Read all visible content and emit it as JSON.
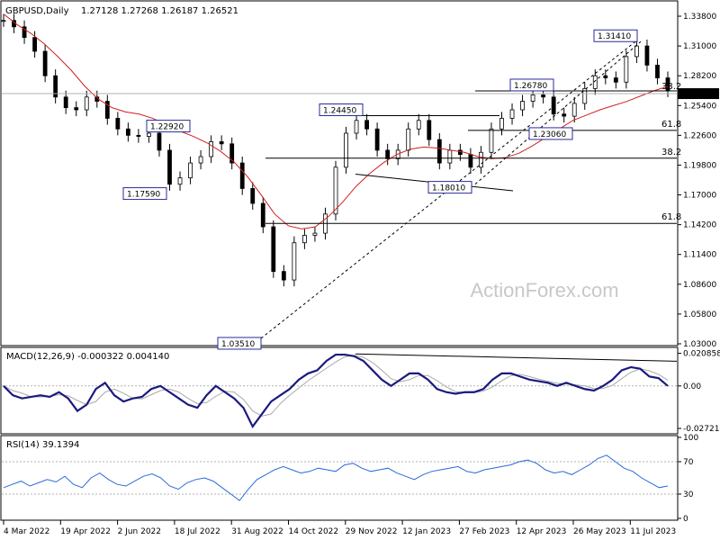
{
  "header": {
    "symbol": "GBPUSD,Daily",
    "ohlc": "1.27128 1.27268 1.26187 1.26521"
  },
  "watermark": "ActionForex.com",
  "colors": {
    "candle": "#000000",
    "ma": "#d02020",
    "macd_main": "#1a1a80",
    "macd_signal": "#aaaaaa",
    "rsi": "#2a6ad8",
    "grid": "#b0b0b0",
    "price_tag_bg": "#000000"
  },
  "chart_data": [
    {
      "type": "candlestick",
      "title": "GBPUSD,Daily",
      "x_tick_labels": [
        "4 Mar 2022",
        "19 Apr 2022",
        "2 Jun 2022",
        "18 Jul 2022",
        "31 Aug 2022",
        "14 Oct 2022",
        "29 Nov 2022",
        "12 Jan 2023",
        "27 Feb 2023",
        "12 Apr 2023",
        "26 May 2023",
        "11 Jul 2023"
      ],
      "y_tick_labels": [
        "1.33800",
        "1.31000",
        "1.28200",
        "1.25400",
        "1.22600",
        "1.19800",
        "1.17000",
        "1.14200",
        "1.11400",
        "1.08600",
        "1.05800",
        "1.03000"
      ],
      "ylim": [
        1.03,
        1.338
      ],
      "last_price": "1.26521",
      "ma_values": [
        1.34,
        1.33,
        1.322,
        1.312,
        1.3,
        1.287,
        1.272,
        1.26,
        1.252,
        1.248,
        1.246,
        1.242,
        1.236,
        1.23,
        1.225,
        1.219,
        1.211,
        1.201,
        1.187,
        1.17,
        1.152,
        1.141,
        1.138,
        1.14,
        1.15,
        1.163,
        1.178,
        1.19,
        1.2,
        1.208,
        1.213,
        1.215,
        1.214,
        1.212,
        1.21,
        1.206,
        1.204,
        1.205,
        1.209,
        1.216,
        1.224,
        1.232,
        1.24,
        1.245,
        1.25,
        1.254,
        1.258,
        1.263,
        1.268,
        1.272
      ],
      "close_values": [
        1.334,
        1.328,
        1.318,
        1.305,
        1.282,
        1.262,
        1.252,
        1.25,
        1.262,
        1.258,
        1.242,
        1.232,
        1.226,
        1.225,
        1.228,
        1.212,
        1.18,
        1.186,
        1.2,
        1.206,
        1.22,
        1.218,
        1.2,
        1.176,
        1.162,
        1.14,
        1.098,
        1.09,
        1.125,
        1.132,
        1.134,
        1.152,
        1.196,
        1.228,
        1.24,
        1.232,
        1.212,
        1.204,
        1.212,
        1.232,
        1.24,
        1.222,
        1.2,
        1.212,
        1.208,
        1.196,
        1.21,
        1.232,
        1.242,
        1.25,
        1.258,
        1.264,
        1.262,
        1.246,
        1.244,
        1.256,
        1.27,
        1.282,
        1.28,
        1.276,
        1.3,
        1.31,
        1.292,
        1.28,
        1.268
      ],
      "levels": [
        {
          "label": "1.31410",
          "value": 1.3141
        },
        {
          "label": "1.26780",
          "value": 1.2678
        },
        {
          "label": "1.24450",
          "value": 1.2445
        },
        {
          "label": "1.22920",
          "value": 1.2292
        },
        {
          "label": "1.23060",
          "value": 1.2306
        },
        {
          "label": "1.17590",
          "value": 1.1759
        },
        {
          "label": "1.18010",
          "value": 1.1801
        },
        {
          "label": "1.03510",
          "value": 1.0351
        }
      ],
      "fib_labels": [
        {
          "label": "38.2",
          "value": 1.2678
        },
        {
          "label": "61.8",
          "value": 1.2306
        },
        {
          "label": "38.2",
          "value": 1.2045
        },
        {
          "label": "61.8",
          "value": 1.1432
        }
      ]
    },
    {
      "type": "line",
      "title": "MACD(12,26,9) -0.000322 0.004140",
      "y_tick_labels": [
        "0.020858",
        "0.00",
        "-0.027213"
      ],
      "ylim": [
        -0.0295,
        0.0235
      ],
      "series": [
        {
          "values": [
            0.0,
            -0.006,
            -0.008,
            -0.007,
            -0.006,
            -0.007,
            -0.004,
            -0.008,
            -0.016,
            -0.012,
            -0.002,
            0.002,
            -0.006,
            -0.01,
            -0.008,
            -0.007,
            -0.002,
            0.0,
            -0.004,
            -0.008,
            -0.012,
            -0.014,
            -0.006,
            0.0,
            -0.004,
            -0.008,
            -0.014,
            -0.026,
            -0.018,
            -0.01,
            -0.006,
            -0.002,
            0.004,
            0.008,
            0.01,
            0.016,
            0.02,
            0.02,
            0.019,
            0.016,
            0.01,
            0.004,
            0.0,
            0.004,
            0.008,
            0.008,
            0.004,
            -0.002,
            -0.004,
            -0.005,
            -0.004,
            -0.004,
            -0.002,
            0.004,
            0.008,
            0.008,
            0.006,
            0.004,
            0.003,
            0.002,
            0.0,
            0.002,
            0.0,
            -0.002,
            -0.003,
            0.0,
            0.004,
            0.01,
            0.012,
            0.011,
            0.006,
            0.005,
            0.0
          ]
        }
      ]
    },
    {
      "type": "line",
      "title": "RSI(14) 39.1394",
      "y_tick_labels": [
        "100",
        "70",
        "30",
        "0"
      ],
      "ylim": [
        0,
        100
      ],
      "series": [
        {
          "values": [
            38,
            42,
            46,
            40,
            44,
            48,
            45,
            52,
            42,
            38,
            50,
            56,
            48,
            42,
            40,
            46,
            52,
            55,
            50,
            40,
            36,
            44,
            48,
            50,
            46,
            38,
            30,
            22,
            36,
            48,
            54,
            60,
            64,
            60,
            56,
            58,
            62,
            60,
            58,
            66,
            68,
            62,
            58,
            60,
            62,
            56,
            52,
            48,
            54,
            58,
            60,
            62,
            64,
            58,
            56,
            60,
            62,
            64,
            66,
            70,
            72,
            68,
            60,
            56,
            58,
            54,
            60,
            66,
            74,
            78,
            70,
            62,
            58,
            50,
            44,
            38,
            40
          ]
        }
      ]
    }
  ]
}
